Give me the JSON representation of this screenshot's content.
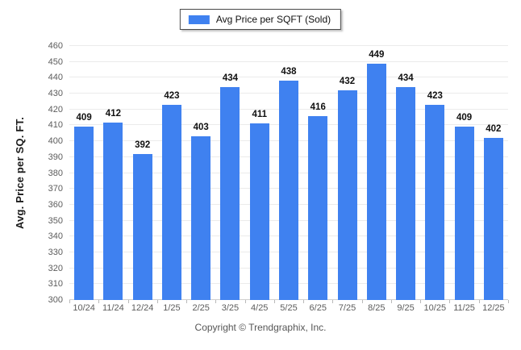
{
  "legend": {
    "label": "Avg Price per SQFT (Sold)"
  },
  "chart_data": {
    "type": "bar",
    "title": "Avg Price per SQFT (Sold)",
    "categories": [
      "10/24",
      "11/24",
      "12/24",
      "1/25",
      "2/25",
      "3/25",
      "4/25",
      "5/25",
      "6/25",
      "7/25",
      "8/25",
      "9/25",
      "10/25",
      "11/25",
      "12/25"
    ],
    "values": [
      409,
      412,
      392,
      423,
      403,
      434,
      411,
      438,
      416,
      432,
      449,
      434,
      423,
      409,
      402
    ],
    "xlabel": "",
    "ylabel": "Avg. Price per SQ. FT.",
    "ylim": [
      300,
      460
    ],
    "ytick_step": 10,
    "grid": true,
    "legend_position": "top-center",
    "bar_color": "#3f81f0"
  },
  "footer": {
    "copyright": "Copyright © Trendgraphix, Inc."
  }
}
